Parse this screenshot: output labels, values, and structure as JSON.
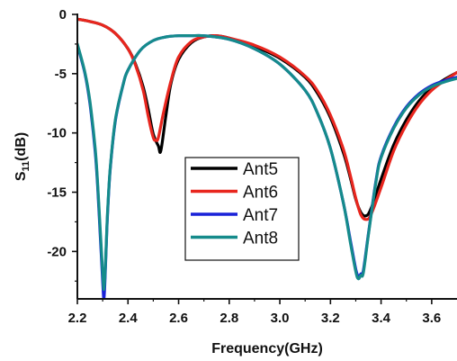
{
  "chart_data": {
    "type": "line",
    "xlabel": "Frequency(GHz)",
    "ylabel_main": "S",
    "ylabel_sub": "11",
    "ylabel_unit": "(dB)",
    "xlim": [
      2.2,
      3.7
    ],
    "ylim": [
      -24,
      0
    ],
    "x_ticks": [
      "2.2",
      "2.4",
      "2.6",
      "2.8",
      "3.0",
      "3.2",
      "3.4",
      "3.6"
    ],
    "x_tick_values": [
      2.2,
      2.4,
      2.6,
      2.8,
      3.0,
      3.2,
      3.4,
      3.6
    ],
    "y_ticks": [
      "0",
      "-5",
      "-10",
      "-15",
      "-20"
    ],
    "y_tick_values": [
      0,
      -5,
      -10,
      -15,
      -20
    ],
    "grid": false,
    "legend_position": "center",
    "series": [
      {
        "name": "Ant5",
        "color": "#000000",
        "x": [
          2.2,
          2.25,
          2.3,
          2.35,
          2.4,
          2.43,
          2.46,
          2.48,
          2.5,
          2.52,
          2.53,
          2.55,
          2.57,
          2.6,
          2.65,
          2.7,
          2.75,
          2.8,
          2.9,
          3.0,
          3.1,
          3.15,
          3.2,
          3.25,
          3.28,
          3.3,
          3.32,
          3.34,
          3.36,
          3.4,
          3.45,
          3.5,
          3.55,
          3.6,
          3.65,
          3.7
        ],
        "y": [
          -0.4,
          -0.6,
          -0.9,
          -1.6,
          -2.9,
          -4.2,
          -6.1,
          -8.0,
          -10.1,
          -11.1,
          -11.5,
          -8.5,
          -5.8,
          -3.8,
          -2.4,
          -1.9,
          -1.8,
          -2.0,
          -2.7,
          -3.7,
          -5.3,
          -6.7,
          -8.7,
          -11.6,
          -13.9,
          -15.6,
          -16.7,
          -17.0,
          -16.4,
          -13.9,
          -11.0,
          -8.9,
          -7.3,
          -6.2,
          -5.5,
          -4.9
        ]
      },
      {
        "name": "Ant6",
        "color": "#e8261e",
        "x": [
          2.2,
          2.25,
          2.3,
          2.35,
          2.4,
          2.43,
          2.46,
          2.48,
          2.5,
          2.51,
          2.52,
          2.54,
          2.57,
          2.6,
          2.65,
          2.7,
          2.75,
          2.8,
          2.9,
          3.0,
          3.1,
          3.15,
          3.2,
          3.25,
          3.28,
          3.3,
          3.32,
          3.34,
          3.36,
          3.4,
          3.45,
          3.5,
          3.55,
          3.6,
          3.65,
          3.7
        ],
        "y": [
          -0.4,
          -0.6,
          -0.9,
          -1.6,
          -2.9,
          -4.3,
          -6.4,
          -8.6,
          -10.4,
          -10.6,
          -10.4,
          -8.3,
          -5.6,
          -3.6,
          -2.3,
          -1.9,
          -1.8,
          -2.0,
          -2.6,
          -3.6,
          -5.2,
          -6.5,
          -8.5,
          -11.3,
          -13.7,
          -15.5,
          -16.9,
          -17.3,
          -16.9,
          -14.6,
          -11.5,
          -9.3,
          -7.6,
          -6.4,
          -5.6,
          -4.9
        ]
      },
      {
        "name": "Ant7",
        "color": "#1a22d8",
        "x": [
          2.2,
          2.23,
          2.25,
          2.27,
          2.28,
          2.29,
          2.3,
          2.305,
          2.31,
          2.315,
          2.32,
          2.33,
          2.35,
          2.38,
          2.4,
          2.45,
          2.5,
          2.55,
          2.6,
          2.65,
          2.7,
          2.8,
          2.9,
          3.0,
          3.1,
          3.15,
          3.2,
          3.25,
          3.28,
          3.3,
          3.31,
          3.32,
          3.33,
          3.35,
          3.38,
          3.4,
          3.45,
          3.5,
          3.55,
          3.6,
          3.65,
          3.7
        ],
        "y": [
          -2.6,
          -5.0,
          -7.6,
          -11.5,
          -14.5,
          -18.5,
          -22.5,
          -24.0,
          -22.0,
          -19.0,
          -16.5,
          -13.0,
          -9.0,
          -6.0,
          -4.7,
          -3.0,
          -2.2,
          -1.9,
          -1.8,
          -1.8,
          -1.8,
          -2.1,
          -2.9,
          -4.2,
          -6.4,
          -8.4,
          -11.3,
          -15.8,
          -19.2,
          -21.5,
          -22.1,
          -21.9,
          -21.6,
          -18.5,
          -14.0,
          -12.0,
          -9.5,
          -7.8,
          -6.7,
          -6.0,
          -5.6,
          -5.3
        ]
      },
      {
        "name": "Ant8",
        "color": "#158b8b",
        "x": [
          2.2,
          2.23,
          2.25,
          2.27,
          2.28,
          2.29,
          2.3,
          2.305,
          2.31,
          2.315,
          2.32,
          2.33,
          2.35,
          2.38,
          2.4,
          2.45,
          2.5,
          2.55,
          2.6,
          2.65,
          2.7,
          2.8,
          2.9,
          3.0,
          3.1,
          3.15,
          3.2,
          3.25,
          3.28,
          3.3,
          3.31,
          3.32,
          3.33,
          3.35,
          3.38,
          3.4,
          3.45,
          3.5,
          3.55,
          3.6,
          3.65,
          3.7
        ],
        "y": [
          -2.5,
          -4.9,
          -7.4,
          -11.2,
          -14.2,
          -18.0,
          -21.8,
          -23.2,
          -21.6,
          -18.8,
          -16.3,
          -12.9,
          -8.9,
          -6.0,
          -4.7,
          -3.0,
          -2.2,
          -1.9,
          -1.8,
          -1.8,
          -1.8,
          -2.1,
          -2.9,
          -4.2,
          -6.4,
          -8.4,
          -11.3,
          -15.8,
          -19.4,
          -21.7,
          -22.3,
          -22.0,
          -21.8,
          -18.6,
          -14.1,
          -12.1,
          -9.6,
          -7.9,
          -6.8,
          -6.1,
          -5.7,
          -5.4
        ]
      }
    ]
  }
}
